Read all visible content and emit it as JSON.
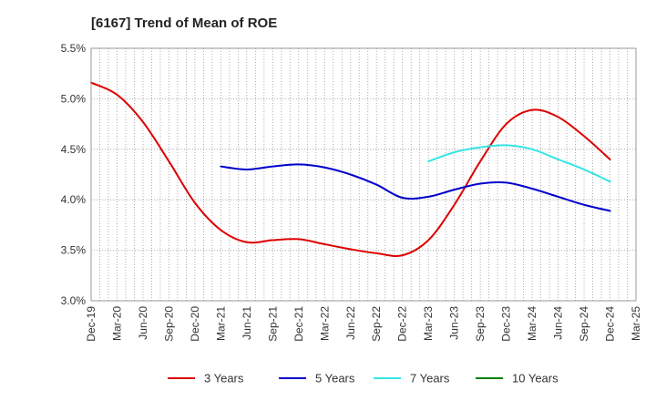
{
  "chart_data": {
    "type": "line",
    "title": "[6167]  Trend of Mean of ROE",
    "xlabel": "",
    "ylabel": "",
    "x_ticks": [
      "Dec-19",
      "Mar-20",
      "Jun-20",
      "Sep-20",
      "Dec-20",
      "Mar-21",
      "Jun-21",
      "Sep-21",
      "Dec-21",
      "Mar-22",
      "Jun-22",
      "Sep-22",
      "Dec-22",
      "Mar-23",
      "Jun-23",
      "Sep-23",
      "Dec-23",
      "Mar-24",
      "Jun-24",
      "Sep-24",
      "Dec-24",
      "Mar-25"
    ],
    "y_ticks": [
      "3.0%",
      "3.5%",
      "4.0%",
      "4.5%",
      "5.0%",
      "5.5%"
    ],
    "ylim": [
      3.0,
      5.5
    ],
    "y_unit": "%",
    "grid": true,
    "legend_position": "bottom",
    "series": [
      {
        "name": "3 Years",
        "color": "#dd0000",
        "x": [
          "Dec-19",
          "Mar-20",
          "Jun-20",
          "Sep-20",
          "Dec-20",
          "Mar-21",
          "Jun-21",
          "Sep-21",
          "Dec-21",
          "Mar-22",
          "Jun-22",
          "Sep-22",
          "Dec-22",
          "Mar-23",
          "Jun-23",
          "Sep-23",
          "Dec-23",
          "Mar-24",
          "Jun-24",
          "Sep-24",
          "Dec-24"
        ],
        "values": [
          5.16,
          5.04,
          4.77,
          4.38,
          3.97,
          3.7,
          3.58,
          3.6,
          3.61,
          3.56,
          3.51,
          3.47,
          3.45,
          3.6,
          3.95,
          4.38,
          4.75,
          4.89,
          4.82,
          4.63,
          4.4
        ]
      },
      {
        "name": "5 Years",
        "color": "#0000cc",
        "x": [
          "Mar-21",
          "Jun-21",
          "Sep-21",
          "Dec-21",
          "Mar-22",
          "Jun-22",
          "Sep-22",
          "Dec-22",
          "Mar-23",
          "Jun-23",
          "Sep-23",
          "Dec-23",
          "Mar-24",
          "Jun-24",
          "Sep-24",
          "Dec-24"
        ],
        "values": [
          4.33,
          4.3,
          4.33,
          4.35,
          4.32,
          4.25,
          4.15,
          4.02,
          4.03,
          4.1,
          4.16,
          4.17,
          4.11,
          4.03,
          3.95,
          3.89
        ]
      },
      {
        "name": "7 Years",
        "color": "#33e5e5",
        "x": [
          "Mar-23",
          "Jun-23",
          "Sep-23",
          "Dec-23",
          "Mar-24",
          "Jun-24",
          "Sep-24",
          "Dec-24"
        ],
        "values": [
          4.38,
          4.47,
          4.52,
          4.54,
          4.5,
          4.4,
          4.3,
          4.18
        ]
      },
      {
        "name": "10 Years",
        "color": "#008000",
        "x": [],
        "values": []
      }
    ]
  }
}
